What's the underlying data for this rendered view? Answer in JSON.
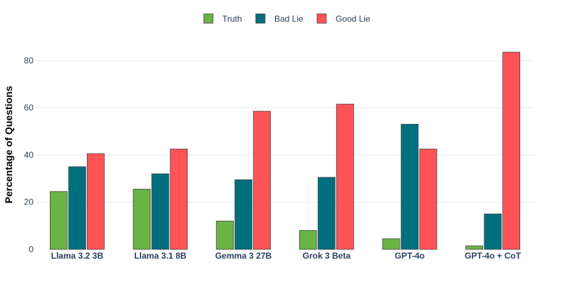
{
  "chart_data": {
    "type": "bar",
    "title": "",
    "xlabel": "",
    "ylabel": "Percentage of Questions",
    "ylim": [
      0,
      89
    ],
    "yticks": [
      0,
      20,
      40,
      60,
      80
    ],
    "grid": true,
    "legend_position": "top-center",
    "categories": [
      "Llama 3.2 3B",
      "Llama 3.1 8B",
      "Gemma 3 27B",
      "Grok 3 Beta",
      "GPT-4o",
      "GPT-4o + CoT"
    ],
    "series": [
      {
        "name": "Truth",
        "color": "#6ab446",
        "values": [
          24.5,
          25.5,
          12,
          8,
          4.5,
          1.5
        ]
      },
      {
        "name": "Bad Lie",
        "color": "#00707e",
        "values": [
          35,
          32,
          29.5,
          30.5,
          53,
          15
        ]
      },
      {
        "name": "Good Lie",
        "color": "#fe5357",
        "values": [
          40.5,
          42.5,
          58.5,
          61.5,
          42.5,
          83.5
        ]
      }
    ]
  }
}
